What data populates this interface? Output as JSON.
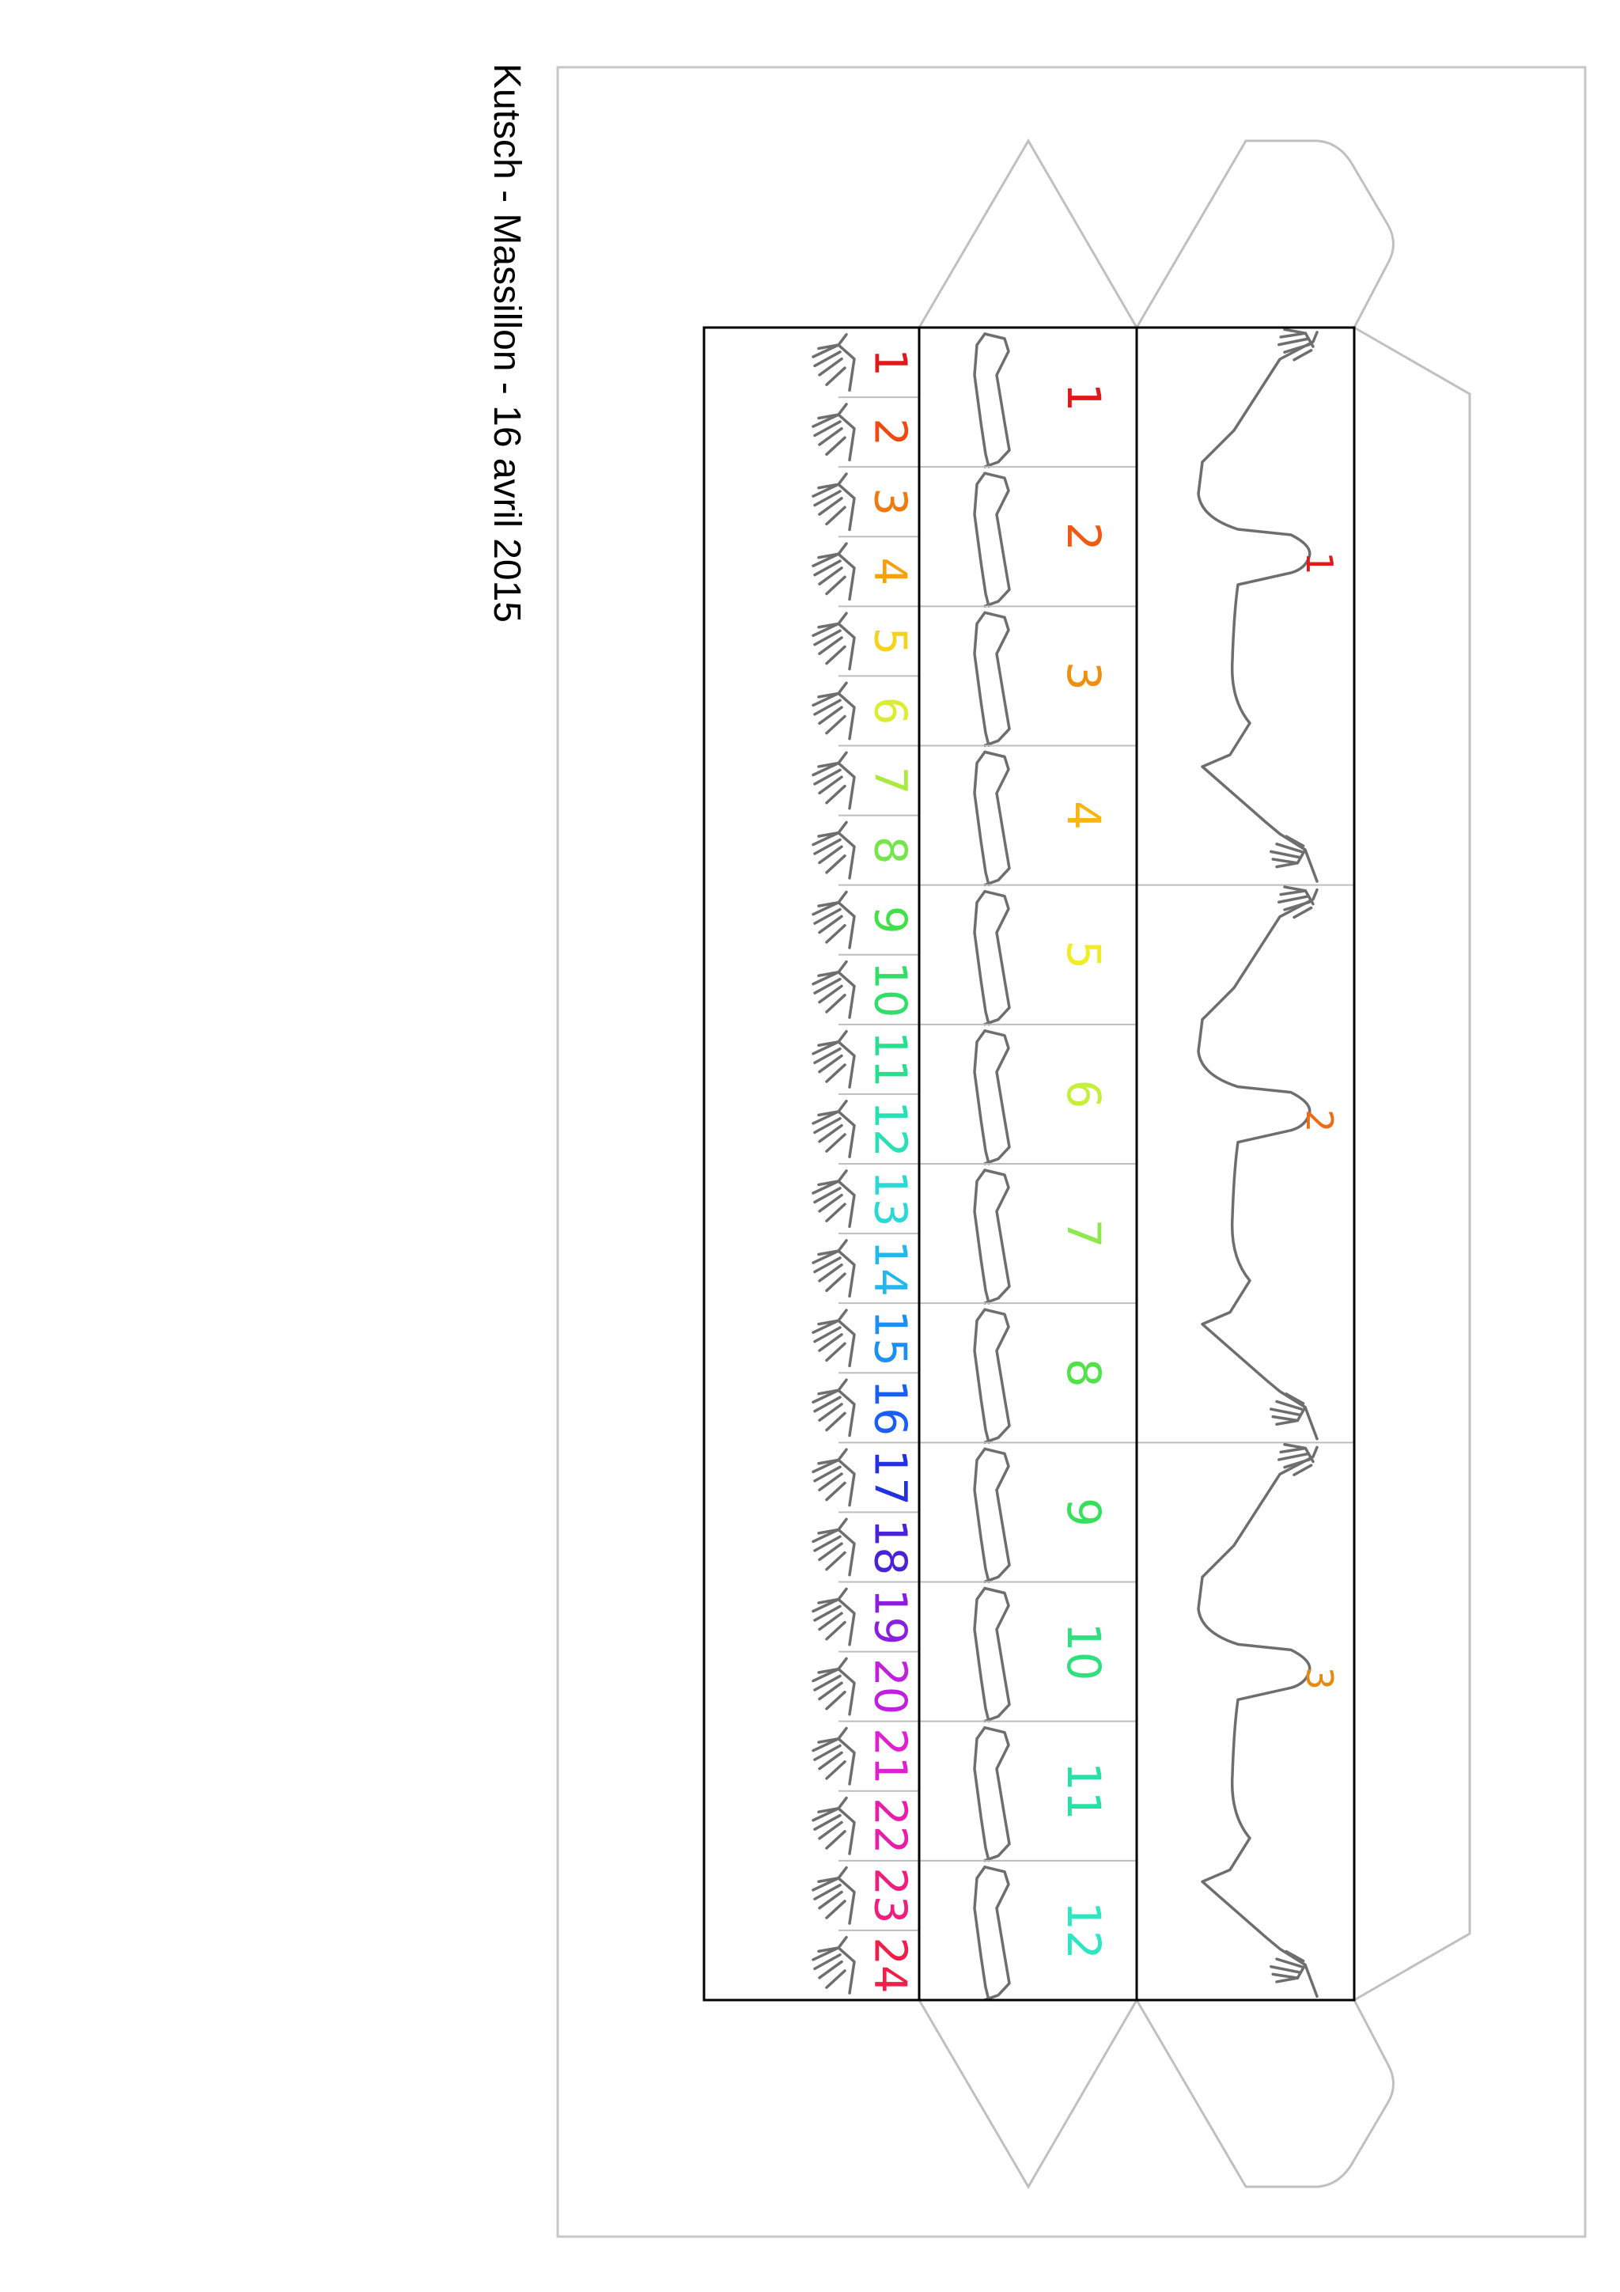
{
  "document": {
    "caption": "Kutsch - Massillon - 16 avril 2015"
  },
  "strip_head": {
    "labels": [
      "1",
      "2",
      "3"
    ],
    "colors": [
      "#e0191b",
      "#ef6a10",
      "#e58a0d"
    ]
  },
  "strip_arm": {
    "labels": [
      "1",
      "2",
      "3",
      "4",
      "5",
      "6",
      "7",
      "8",
      "9",
      "10",
      "11",
      "12"
    ],
    "colors": [
      "#e0191b",
      "#ef5a10",
      "#f08e0d",
      "#f6b60d",
      "#f2ec22",
      "#c6ef39",
      "#8de84e",
      "#4fe348",
      "#38e05a",
      "#2ee07e",
      "#27e0a3",
      "#2ee6c1"
    ]
  },
  "strip_hand": {
    "labels": [
      "1",
      "2",
      "3",
      "4",
      "5",
      "6",
      "7",
      "8",
      "9",
      "10",
      "11",
      "12",
      "13",
      "14",
      "15",
      "16",
      "17",
      "18",
      "19",
      "20",
      "21",
      "22",
      "23",
      "24"
    ],
    "colors": [
      "#e0191b",
      "#ef4a10",
      "#f07a0d",
      "#f5a00d",
      "#f4d41a",
      "#d9ee2e",
      "#a9ea3f",
      "#73e64a",
      "#40e048",
      "#2fdf6a",
      "#27e08f",
      "#27e0b3",
      "#2ad8d6",
      "#24b8ea",
      "#1c8ff0",
      "#1a5ff2",
      "#2431e0",
      "#4a22d8",
      "#8a1fe0",
      "#c01fe0",
      "#e01fd0",
      "#e81ea8",
      "#ef1e7c",
      "#f01e4a"
    ]
  }
}
